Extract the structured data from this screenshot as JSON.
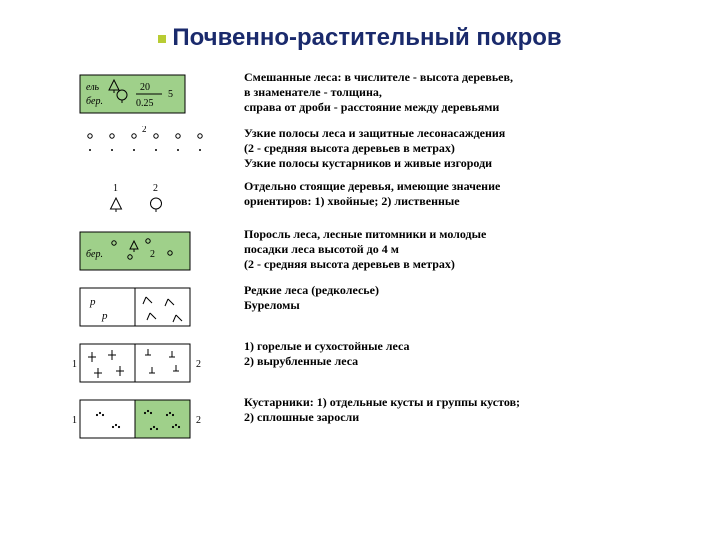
{
  "title": "Почвенно-растительный покров",
  "title_color": "#1a2a6c",
  "title_fontsize": 24,
  "desc_fontsize": 12,
  "desc_color": "#000000",
  "symbol_fill_green": "#9fd08a",
  "symbol_stroke": "#000000",
  "bg_color": "#ffffff",
  "rows": [
    {
      "desc": [
        "Смешанные леса: в числителе - высота деревьев,",
        "в знаменателе - толщина,",
        "справа от дроби - расстояние между деревьями"
      ],
      "symbol": {
        "type": "mixed-forest",
        "label_left_top": "ель",
        "label_left_bot": "бер.",
        "num": "20",
        "den": "0.25",
        "right": "5"
      }
    },
    {
      "desc": [
        "Узкие полосы леса и защитные лесонасаждения",
        "(2 - средняя высота деревьев в метрах)",
        "Узкие полосы кустарников и живые изгороди"
      ],
      "symbol": {
        "type": "narrow-strip",
        "label": "2"
      }
    },
    {
      "desc": [
        "Отдельно стоящие деревья, имеющие значение",
        "ориентиров: 1) хвойные; 2) лиственные"
      ],
      "symbol": {
        "type": "single-trees",
        "labels": [
          "1",
          "2"
        ]
      }
    },
    {
      "desc": [
        "Поросль леса, лесные питомники и молодые",
        "посадки леса высотой до 4 м",
        "(2 - средняя высота деревьев в метрах)"
      ],
      "symbol": {
        "type": "young-forest",
        "label_left": "бер.",
        "label_right": "2"
      }
    },
    {
      "desc": [
        "Редкие леса (редколесье)",
        "Буреломы"
      ],
      "symbol": {
        "type": "sparse-windfall"
      }
    },
    {
      "desc": [
        "1) горелые и сухостойные леса",
        "2) вырубленные леса"
      ],
      "symbol": {
        "type": "burnt-cut",
        "labels": [
          "1",
          "2"
        ]
      }
    },
    {
      "desc": [
        "Кустарники: 1) отдельные кусты и группы кустов;",
        "2) сплошные заросли"
      ],
      "symbol": {
        "type": "shrubs",
        "labels": [
          "1",
          "2"
        ]
      }
    }
  ]
}
